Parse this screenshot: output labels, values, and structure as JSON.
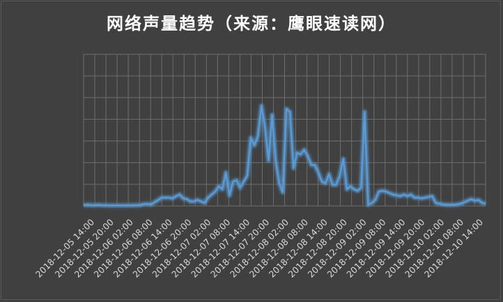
{
  "chart_data": {
    "type": "line",
    "title": "网络声量趋势（来源：鹰眼速读网）",
    "xlabel": "",
    "ylabel": "",
    "grid": true,
    "legend": "none",
    "y_axis_labels_shown": false,
    "ylim": [
      0,
      100
    ],
    "colors": {
      "line": "#5b9bd5",
      "glow": "#5b9bd5",
      "grid": "#6e6e6e",
      "background": "#404040",
      "text": "#d9d9d9"
    },
    "tick_labels": [
      "2018-12-05 14:00",
      "2018-12-05 20:00",
      "2018-12-06 02:00",
      "2018-12-06 08:00",
      "2018-12-06 14:00",
      "2018-12-06 20:00",
      "2018-12-07 02:00",
      "2018-12-07 08:00",
      "2018-12-07 14:00",
      "2018-12-07 20:00",
      "2018-12-08 02:00",
      "2018-12-08 08:00",
      "2018-12-08 14:00",
      "2018-12-08 20:00",
      "2018-12-09 02:00",
      "2018-12-09 08:00",
      "2018-12-09 14:00",
      "2018-12-09 20:00",
      "2018-12-10 02:00",
      "2018-12-10 08:00",
      "2018-12-10 14:00"
    ],
    "series": [
      {
        "values": [
          0.5,
          0.8,
          0.6,
          0.4,
          0.7,
          0.5,
          0.4,
          0.3,
          0.3,
          0.3,
          0.3,
          0.3,
          0.3,
          0.3,
          0.4,
          0.5,
          0.6,
          1.3,
          1.3,
          1.0,
          2.5,
          4.0,
          5.5,
          5.5,
          5.5,
          5.0,
          6.5,
          7.5,
          5.0,
          4.5,
          3.0,
          3.0,
          4.0,
          3.0,
          2.0,
          5.5,
          7.5,
          9.5,
          13.0,
          11.0,
          22.0,
          7.0,
          16.0,
          17.0,
          12.0,
          16.0,
          20.0,
          45.0,
          40.0,
          46.0,
          66.0,
          52.0,
          30.0,
          60.0,
          30.0,
          15.0,
          9.0,
          64.0,
          62.0,
          25.0,
          35.0,
          34.0,
          37.0,
          33.0,
          27.0,
          27.0,
          22.0,
          16.0,
          15.0,
          21.0,
          14.0,
          14.0,
          20.0,
          31.0,
          11.0,
          13.0,
          11.0,
          10.0,
          12.0,
          62.0,
          0.8,
          2.0,
          4.0,
          9.5,
          10.0,
          9.5,
          8.5,
          7.5,
          7.0,
          6.5,
          7.5,
          6.5,
          7.5,
          5.5,
          5.5,
          5.0,
          5.5,
          6.0,
          6.5,
          2.0,
          1.5,
          1.0,
          0.8,
          0.8,
          0.8,
          1.0,
          1.5,
          2.5,
          3.5,
          4.5,
          3.5,
          4.0,
          2.0,
          1.5
        ]
      }
    ]
  }
}
